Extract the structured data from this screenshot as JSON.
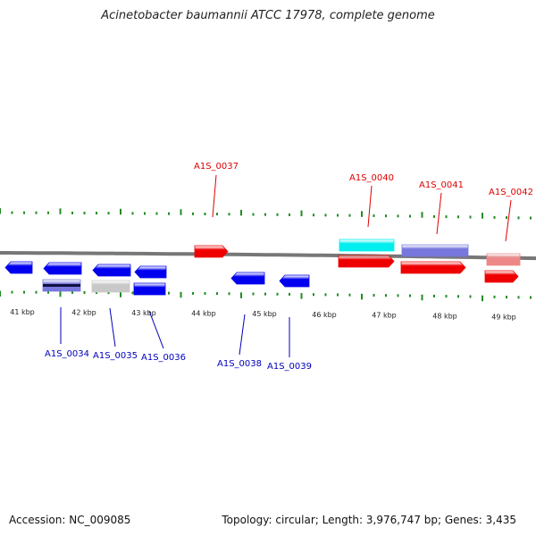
{
  "title": "Acinetobacter baumannii ATCC 17978, complete genome",
  "accession_text": "Accession: NC_009085",
  "topology_text": "Topology: circular; Length: 3,976,747 bp; Genes: 3,435",
  "kbp_labels": [
    "41 kbp",
    "42 kbp",
    "43 kbp",
    "44 kbp",
    "45 kbp",
    "46 kbp",
    "47 kbp",
    "48 kbp",
    "49 kbp"
  ],
  "colors": {
    "forward_label": "#dd0000",
    "reverse_label": "#0000bb",
    "ticks": "#228b22",
    "backbone": "#777777",
    "blue": "#0000ee",
    "red": "#ee0000",
    "cyan": "#00eeee",
    "purple": "#7777dd",
    "pink": "#ee8888",
    "gray": "#c8c8c8"
  },
  "genes": [
    {
      "id": "A1S_0034",
      "strand": "reverse"
    },
    {
      "id": "A1S_0035",
      "strand": "reverse"
    },
    {
      "id": "A1S_0036",
      "strand": "reverse"
    },
    {
      "id": "A1S_0037",
      "strand": "forward"
    },
    {
      "id": "A1S_0038",
      "strand": "reverse"
    },
    {
      "id": "A1S_0039",
      "strand": "reverse"
    },
    {
      "id": "A1S_0040",
      "strand": "forward"
    },
    {
      "id": "A1S_0041",
      "strand": "forward"
    },
    {
      "id": "A1S_0042",
      "strand": "forward"
    }
  ]
}
